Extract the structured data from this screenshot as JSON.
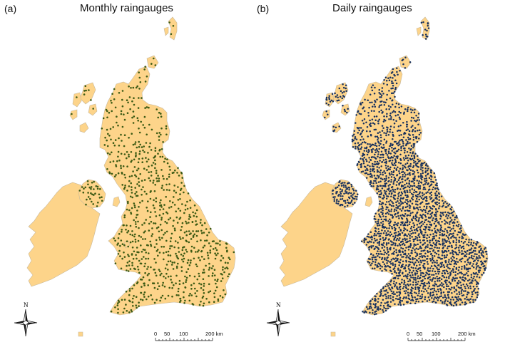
{
  "colors": {
    "land": "#fdd48a",
    "land_outline": "#c8b89a",
    "monthly_dot": "#3c5a14",
    "daily_dot": "#16305e",
    "background": "#ffffff"
  },
  "panels": [
    {
      "letter": "(a)",
      "title": "Monthly raingauges",
      "density": 0.55
    },
    {
      "letter": "(b)",
      "title": "Daily raingauges",
      "density": 0.92
    }
  ],
  "compass": {
    "north_label": "N"
  },
  "scalebar": {
    "ticks": [
      "0",
      "50",
      "100",
      "200 km"
    ]
  }
}
